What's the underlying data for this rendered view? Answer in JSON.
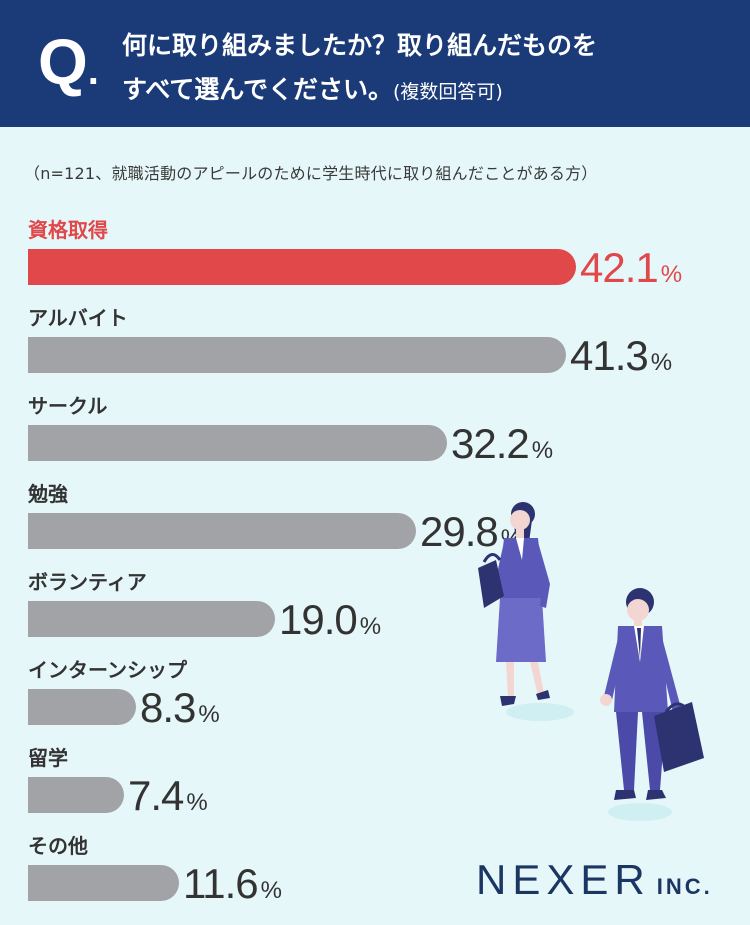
{
  "header": {
    "q_mark": "Q",
    "question_line1": "何に取り組みましたか？取り組んだものを",
    "question_line2": "すべて選んでください。",
    "question_note": "(複数回答可)"
  },
  "sample_note": "（n=121、就職活動のアピールのために学生時代に取り組んだことがある方）",
  "colors": {
    "highlight": "#e0484a",
    "bar": "#a2a3a7",
    "header": "#1b3a78",
    "background": "#e6f7f9"
  },
  "chart_data": {
    "type": "bar",
    "orientation": "horizontal",
    "categories": [
      "資格取得",
      "アルバイト",
      "サークル",
      "勉強",
      "ボランティア",
      "インターンシップ",
      "留学",
      "その他"
    ],
    "values": [
      42.1,
      41.3,
      32.2,
      29.8,
      19.0,
      8.3,
      7.4,
      11.6
    ],
    "value_labels": [
      "42.1",
      "41.3",
      "32.2",
      "29.8",
      "19.0",
      "8.3",
      "7.4",
      "11.6"
    ],
    "unit": "%",
    "highlight_index": 0
  },
  "logo": {
    "main": "NEXER",
    "suffix": "INC."
  }
}
